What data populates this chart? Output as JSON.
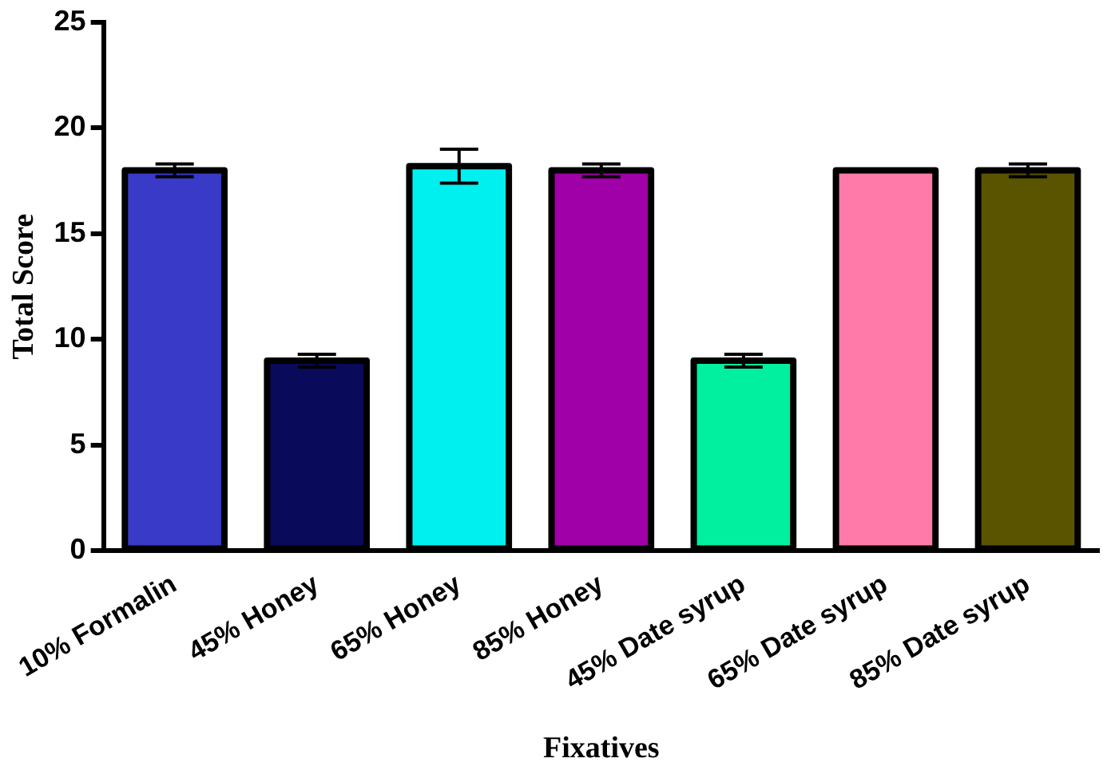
{
  "chart_data": {
    "type": "bar",
    "xlabel": "Fixatives",
    "ylabel": "Total Score",
    "categories": [
      "10% Formalin",
      "45% Honey",
      "65% Honey",
      "85% Honey",
      "45% Date syrup",
      "65% Date syrup",
      "85% Date syrup"
    ],
    "values": [
      18,
      9,
      18.2,
      18,
      9,
      18,
      18
    ],
    "errors": [
      0.3,
      0.3,
      0.8,
      0.3,
      0.3,
      null,
      0.3
    ],
    "colors": [
      "#3a3ac8",
      "#0a0a5a",
      "#00f0f0",
      "#a000a8",
      "#00f0a0",
      "#ff7aa8",
      "#5a5400"
    ],
    "ylim": [
      0,
      25
    ],
    "yticks": [
      0,
      5,
      10,
      15,
      20,
      25
    ],
    "grid": false,
    "legend": false
  }
}
